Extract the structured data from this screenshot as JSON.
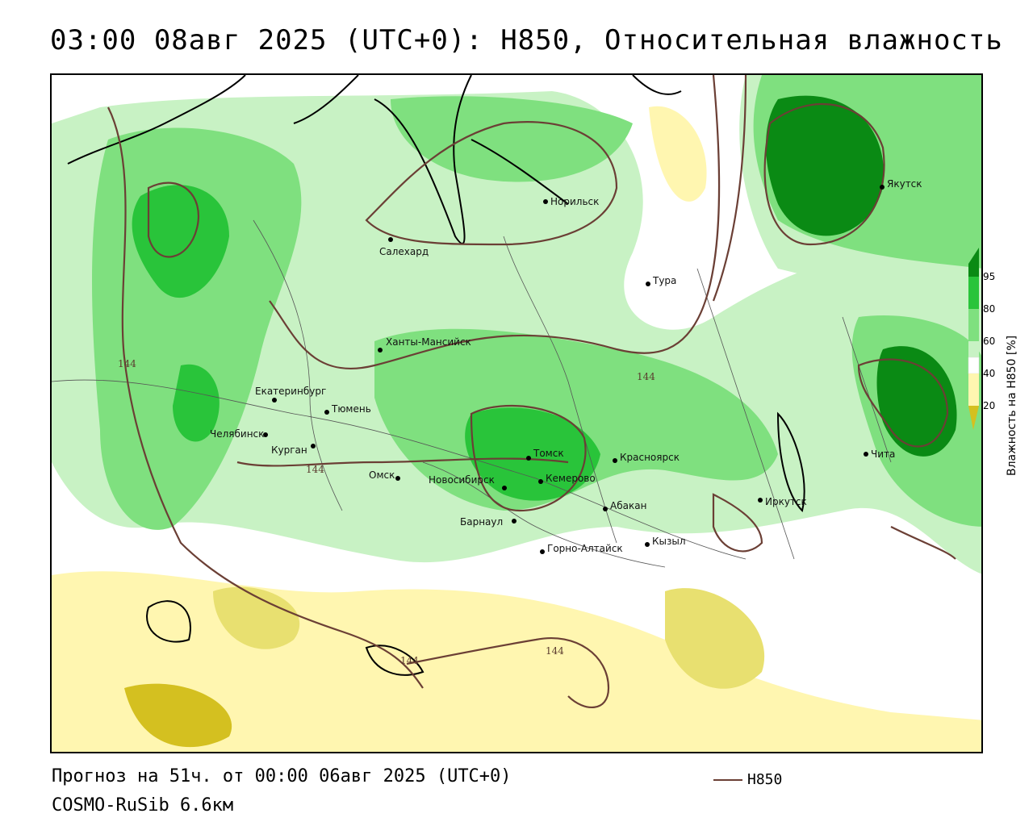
{
  "title": "03:00 08авг 2025 (UTC+0): H850, Относительная влажность",
  "footer": {
    "forecast": "Прогноз на 51ч. от 00:00 06авг 2025 (UTC+0)",
    "model": "COSMO-RuSib 6.6км",
    "contour_legend": "H850"
  },
  "colorbar": {
    "title": "Влажность на H850 [%]",
    "ticks": [
      "95",
      "80",
      "60",
      "40",
      "20"
    ],
    "colors": [
      "#0a8a14",
      "#29c43a",
      "#7fe07f",
      "#c8f2c4",
      "#ffffff",
      "#fff6b0",
      "#e8e070",
      "#d4c020"
    ]
  },
  "contour_labels": [
    "144",
    "144",
    "144",
    "144",
    "144"
  ],
  "cities": [
    {
      "name": "Норильск"
    },
    {
      "name": "Якутск"
    },
    {
      "name": "Салехард"
    },
    {
      "name": "Тура"
    },
    {
      "name": "Ханты-Мансийск"
    },
    {
      "name": "Екатеринбург"
    },
    {
      "name": "Тюмень"
    },
    {
      "name": "Челябинск"
    },
    {
      "name": "Курган"
    },
    {
      "name": "Омск"
    },
    {
      "name": "Томск"
    },
    {
      "name": "Новосибирск"
    },
    {
      "name": "Кемерово"
    },
    {
      "name": "Красноярск"
    },
    {
      "name": "Абакан"
    },
    {
      "name": "Барнаул"
    },
    {
      "name": "Горно-Алтайск"
    },
    {
      "name": "Кызыл"
    },
    {
      "name": "Иркутск"
    },
    {
      "name": "Чита"
    }
  ]
}
